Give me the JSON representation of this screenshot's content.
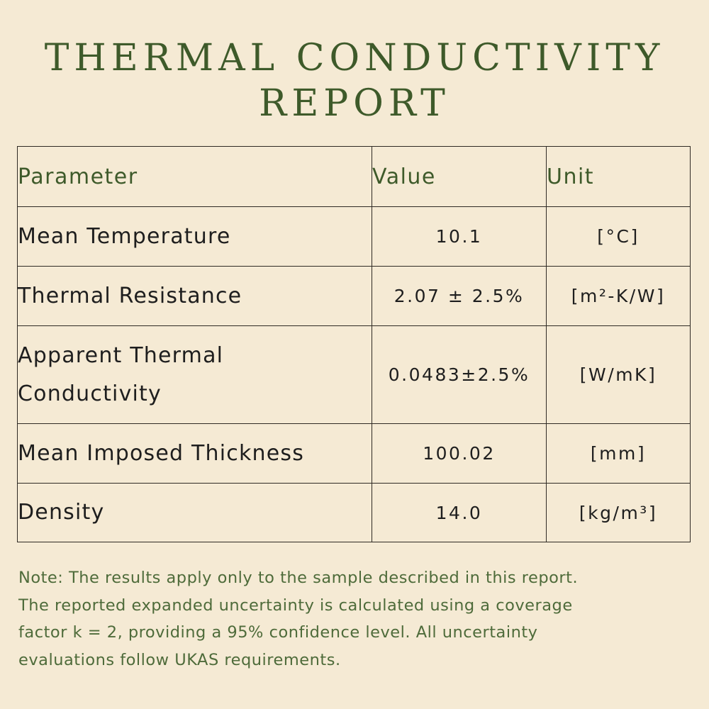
{
  "title": {
    "line1": "THERMAL CONDUCTIVITY",
    "line2": "REPORT"
  },
  "table": {
    "headers": [
      "Parameter",
      "Value",
      "Unit"
    ],
    "rows": [
      {
        "parameter": "Mean Temperature",
        "value": "10.1",
        "unit": "[°C]"
      },
      {
        "parameter": "Thermal Resistance",
        "value": "2.07 ± 2.5%",
        "unit": "[m²-K/W]"
      },
      {
        "parameter": "Apparent Thermal Conductivity",
        "value": "0.0483±2.5%",
        "unit": "[W/mK]"
      },
      {
        "parameter": "Mean Imposed Thickness",
        "value": "100.02",
        "unit": "[mm]"
      },
      {
        "parameter": "Density",
        "value": "14.0",
        "unit": "[kg/m³]"
      }
    ]
  },
  "note": {
    "lines": [
      "Note: The results apply only to the sample described in this report.",
      "The reported expanded uncertainty is calculated using a coverage",
      "factor k = 2, providing a 95% confidence level. All uncertainty",
      "evaluations follow UKAS requirements."
    ]
  },
  "colors": {
    "background": "#f5ead4",
    "title": "#3e5a2a",
    "note": "#4e6b3a",
    "border": "#2f2a24"
  }
}
